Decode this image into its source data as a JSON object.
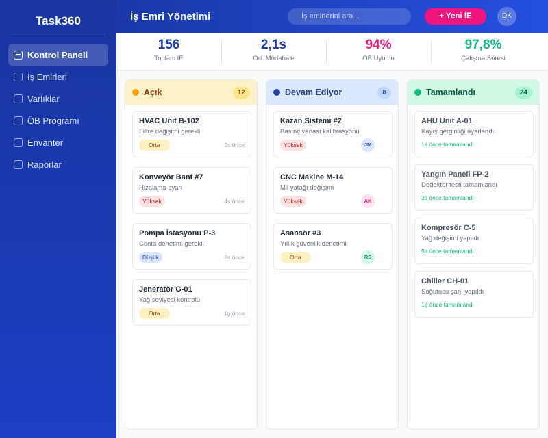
{
  "app": {
    "name": "Task360"
  },
  "sidebar": {
    "items": [
      {
        "label": "Kontrol Paneli",
        "active": true
      },
      {
        "label": "İş Emirleri"
      },
      {
        "label": "Varlıklar"
      },
      {
        "label": "ÖB Programı"
      },
      {
        "label": "Envanter"
      },
      {
        "label": "Raporlar"
      }
    ]
  },
  "header": {
    "title": "İş Emri Yönetimi",
    "search_placeholder": "İş emirlerini ara...",
    "new_button": "+ Yeni İE",
    "user_initials": "DK"
  },
  "stats": [
    {
      "value": "156",
      "label": "Toplam İE",
      "color": "#1e40af"
    },
    {
      "value": "2,1s",
      "label": "Ort. Müdahale",
      "color": "#1e40af"
    },
    {
      "value": "94%",
      "label": "ÖB Uyumu",
      "color": "#ec1c7c"
    },
    {
      "value": "97,8%",
      "label": "Çalışma Süresi",
      "color": "#10b981"
    }
  ],
  "columns": [
    {
      "title": "Açık",
      "count": "12",
      "cards": [
        {
          "title": "HVAC Unit B-102",
          "desc": "Filtre değişimi gerekli",
          "priority": "Orta",
          "time": "2s önce"
        },
        {
          "title": "Konveyör Bant #7",
          "desc": "Hizalama ayarı",
          "priority": "Yüksek",
          "time": "4s önce"
        },
        {
          "title": "Pompa İstasyonu P-3",
          "desc": "Conta denetimi gerekli",
          "priority": "Düşük",
          "time": "6s önce"
        },
        {
          "title": "Jeneratör G-01",
          "desc": "Yağ seviyesi kontrolü",
          "priority": "Orta",
          "time": "1g önce"
        }
      ]
    },
    {
      "title": "Devam Ediyor",
      "count": "8",
      "cards": [
        {
          "title": "Kazan Sistemi #2",
          "desc": "Basınç vanası kalibrasyonu",
          "priority": "Yüksek",
          "assignee": "JM"
        },
        {
          "title": "CNC Makine M-14",
          "desc": "Mil yatağı değişimi",
          "priority": "Yüksek",
          "assignee": "AK"
        },
        {
          "title": "Asansör #3",
          "desc": "Yıllık güvenlik denetimi",
          "priority": "Orta",
          "assignee": "RS"
        }
      ]
    },
    {
      "title": "Tamamlandı",
      "count": "24",
      "cards": [
        {
          "title": "AHU Unit A-01",
          "desc": "Kayış gerginliği ayarlandı",
          "done": "1s önce tamamlandı"
        },
        {
          "title": "Yangın Paneli FP-2",
          "desc": "Dedektör testi tamamlandı",
          "done": "3s önce tamamlandı"
        },
        {
          "title": "Kompresör C-5",
          "desc": "Yağ değişimi yapıldı",
          "done": "5s önce tamamlandı"
        },
        {
          "title": "Chiller CH-01",
          "desc": "Soğutucu şarjı yapıldı",
          "done": "1g önce tamamlandı"
        }
      ]
    }
  ]
}
